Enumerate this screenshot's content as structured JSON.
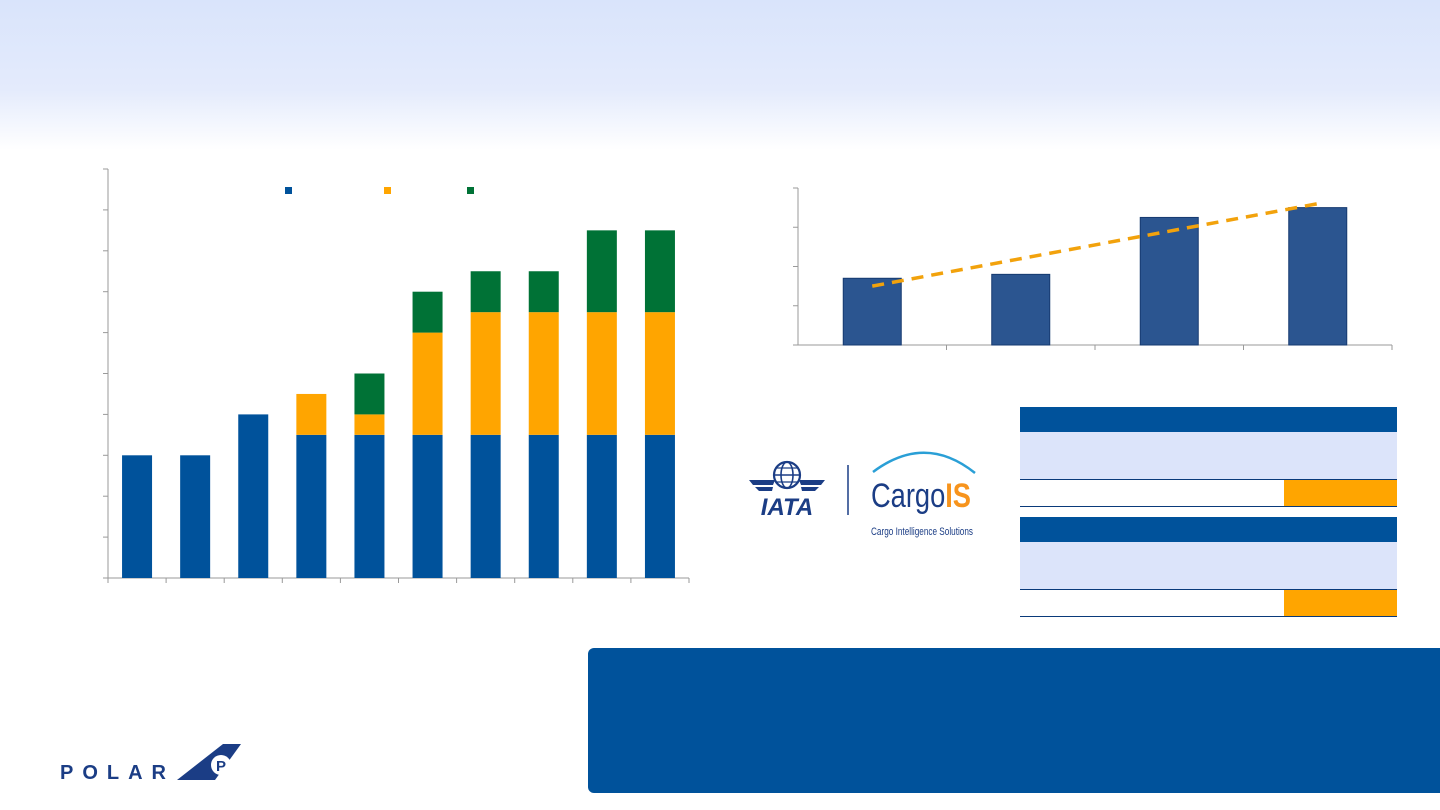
{
  "colors": {
    "brand_blue": "#00529b",
    "orange": "#ffa500",
    "green": "#007236",
    "table_header": "#00529b",
    "table_body": "#dce4fa",
    "note_box": "#00529b",
    "bar_dark": "#2b5590",
    "trend": "#f2a20c",
    "axis": "#9a9a9a",
    "header_band": "#dde6fb"
  },
  "chart_data": [
    {
      "type": "bar",
      "stacked": true,
      "categories": [
        "",
        "",
        "",
        "",
        "",
        "",
        "",
        "",
        "",
        ""
      ],
      "series": [
        {
          "color": "#00529b",
          "values": [
            3,
            3,
            4,
            3.5,
            3.5,
            3.5,
            3.5,
            3.5,
            3.5,
            3.5
          ]
        },
        {
          "color": "#ffa500",
          "values": [
            0,
            0,
            0,
            1,
            0.5,
            2.5,
            3,
            3,
            3,
            3
          ]
        },
        {
          "color": "#007236",
          "values": [
            0,
            0,
            0,
            0,
            1,
            1,
            1,
            1,
            2,
            2
          ]
        }
      ],
      "ylim": [
        0,
        10
      ],
      "y_ticks": 10,
      "legend": "top-center",
      "grid": false
    },
    {
      "type": "bar",
      "categories": [
        "",
        "",
        "",
        ""
      ],
      "values": [
        1.7,
        1.8,
        3.25,
        3.5
      ],
      "trend_line": [
        1.5,
        3.6
      ],
      "ylim": [
        0,
        4
      ],
      "y_ticks": 4,
      "grid": false
    }
  ],
  "logos": {
    "iata_text": "IATA",
    "cargois_text_1": "Cargo",
    "cargois_text_2": "IS",
    "cargois_tagline": "Cargo Intelligence Solutions",
    "polar_text": "POLAR",
    "polar_mark": "P"
  }
}
